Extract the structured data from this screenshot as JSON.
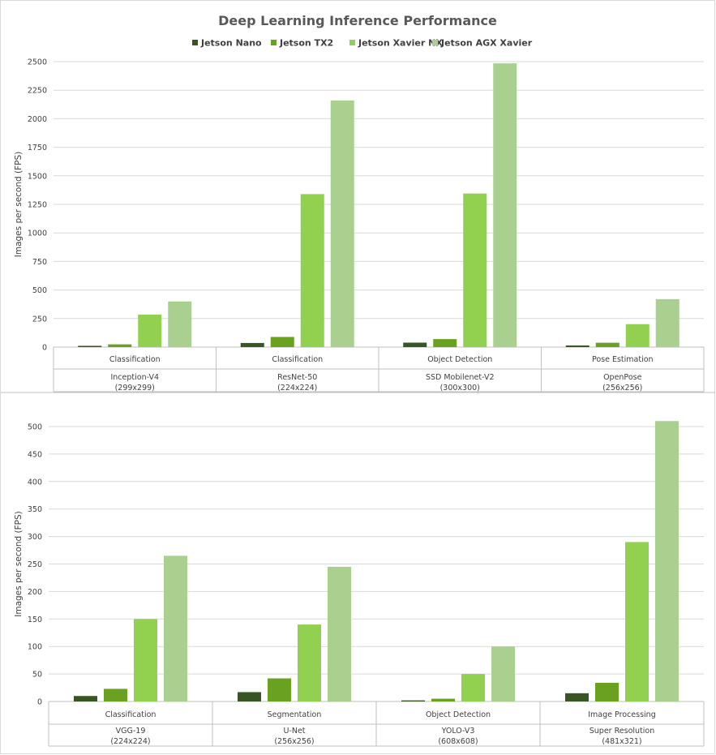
{
  "title": "Deep Learning Inference Performance",
  "colors": [
    "#375623",
    "#6aa121",
    "#92d050",
    "#a9d08e"
  ],
  "chart_data": [
    {
      "type": "bar",
      "title": "Deep Learning Inference Performance",
      "ylabel": "Images per second (FPS)",
      "ylim": [
        0,
        2500
      ],
      "yticks": [
        0,
        250,
        500,
        750,
        1000,
        1250,
        1500,
        1750,
        2000,
        2250,
        2500
      ],
      "legend_position": "top",
      "categories": [
        {
          "task": "Classification",
          "model": "Inception-V4",
          "res": "(299x299)"
        },
        {
          "task": "Classification",
          "model": "ResNet-50",
          "res": "(224x224)"
        },
        {
          "task": "Object Detection",
          "model": "SSD Mobilenet-V2",
          "res": "(300x300)"
        },
        {
          "task": "Pose Estimation",
          "model": "OpenPose",
          "res": "(256x256)"
        }
      ],
      "series": [
        {
          "name": "Jetson Nano",
          "values": [
            11,
            36,
            39,
            14
          ]
        },
        {
          "name": "Jetson TX2",
          "values": [
            24,
            89,
            70,
            38
          ]
        },
        {
          "name": "Jetson Xavier NX",
          "values": [
            285,
            1340,
            1345,
            201
          ]
        },
        {
          "name": "Jetson AGX Xavier",
          "values": [
            400,
            2160,
            2485,
            420
          ]
        }
      ]
    },
    {
      "type": "bar",
      "ylabel": "Images per second (FPS)",
      "ylim": [
        0,
        500
      ],
      "yticks": [
        0,
        50,
        100,
        150,
        200,
        250,
        300,
        350,
        400,
        450,
        500
      ],
      "categories": [
        {
          "task": "Classification",
          "model": "VGG-19",
          "res": "(224x224)"
        },
        {
          "task": "Segmentation",
          "model": "U-Net",
          "res": "(256x256)"
        },
        {
          "task": "Object Detection",
          "model": "YOLO-V3",
          "res": "(608x608)"
        },
        {
          "task": "Image Processing",
          "model": "Super Resolution",
          "res": "(481x321)"
        }
      ],
      "series": [
        {
          "name": "Jetson Nano",
          "values": [
            10,
            17,
            2,
            15
          ]
        },
        {
          "name": "Jetson TX2",
          "values": [
            23,
            42,
            5,
            34
          ]
        },
        {
          "name": "Jetson Xavier NX",
          "values": [
            150,
            140,
            50,
            290
          ]
        },
        {
          "name": "Jetson AGX Xavier",
          "values": [
            265,
            245,
            100,
            510
          ]
        }
      ]
    }
  ]
}
